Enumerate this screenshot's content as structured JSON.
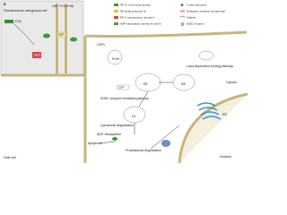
{
  "panel": "B",
  "bacterium": {
    "title": "Pseudomonas aeruginosa cell",
    "om": "OM",
    "periplasm": "Periplasm",
    "im": "IM",
    "toxin": "ETA",
    "sec": "SEC",
    "gsp": "GSP"
  },
  "legend": [
    "PE IV: N-terminal domain",
    "PE binding domain Ia",
    "PE II: translocation domain II",
    "ADP-ribosylation domain III and Ib",
    "C-terminal lysine",
    "Detergent resistant microdomain",
    "Clathrin",
    "KDEL receptor"
  ],
  "host": {
    "cell": "Host cell",
    "nucleus": "Nucleus",
    "cytosol": "Cytosol",
    "pathway_lipid": "Lipid-dependent sorting pathway",
    "pathway_kdel": "KDEL receptor mediated-pathway",
    "lysosome": "Lysosomal degradation",
    "proteasome": "Proteasomal degradation",
    "adp": "ADP-ribosylation",
    "apoptosis": "Apoptosis",
    "ee": "EE",
    "le": "LE",
    "re": "RE",
    "er": "ER",
    "cdp": "CDP",
    "pcm": "PCM",
    "receptor": "LRP1"
  }
}
